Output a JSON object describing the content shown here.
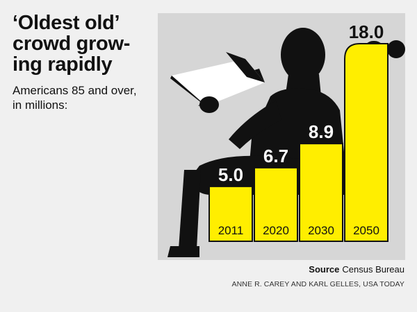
{
  "header": {
    "title_lines": [
      "‘Oldest old’",
      "crowd grow-",
      "ing rapidly"
    ],
    "subtitle_lines": [
      "Americans 85 and over,",
      "in millions:"
    ]
  },
  "chart_data": {
    "type": "bar",
    "categories": [
      "2011",
      "2020",
      "2030",
      "2050"
    ],
    "values": [
      5.0,
      6.7,
      8.9,
      18.0
    ],
    "value_labels": [
      "5.0",
      "6.7",
      "8.9",
      "18.0"
    ],
    "title": "‘Oldest old’ crowd growing rapidly",
    "subtitle": "Americans 85 and over, in millions:",
    "ylim": [
      0,
      18.0
    ],
    "grid": false,
    "bar_color": "#ffee00",
    "background_color": "#d6d6d6",
    "silhouette_color": "#111111"
  },
  "footer": {
    "source_label": "Source",
    "source_text": "Census Bureau",
    "credit": "ANNE R. CAREY AND KARL GELLES, USA TODAY"
  },
  "icons": {
    "silhouette": "man-reading-in-chair-icon"
  }
}
